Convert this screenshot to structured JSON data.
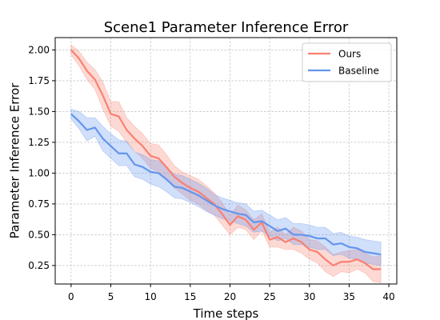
{
  "chart_data": {
    "type": "line",
    "title": "Scene1 Parameter Inference Error",
    "xlabel": "Time steps",
    "ylabel": "Parameter Inference Error",
    "xlim": [
      -2,
      41
    ],
    "ylim": [
      0.1,
      2.1
    ],
    "xticks": [
      0,
      5,
      10,
      15,
      20,
      25,
      30,
      35,
      40
    ],
    "yticks": [
      0.25,
      0.5,
      0.75,
      1.0,
      1.25,
      1.5,
      1.75,
      2.0
    ],
    "xtick_labels": [
      "0",
      "5",
      "10",
      "15",
      "20",
      "25",
      "30",
      "35",
      "40"
    ],
    "ytick_labels": [
      "0.25",
      "0.50",
      "0.75",
      "1.00",
      "1.25",
      "1.50",
      "1.75",
      "2.00"
    ],
    "grid": true,
    "legend_position": "top-right",
    "x": [
      0,
      1,
      2,
      3,
      4,
      5,
      6,
      7,
      8,
      9,
      10,
      11,
      12,
      13,
      14,
      15,
      16,
      17,
      18,
      19,
      20,
      21,
      22,
      23,
      24,
      25,
      26,
      27,
      28,
      29,
      30,
      31,
      32,
      33,
      34,
      35,
      36,
      37,
      38,
      39
    ],
    "series": [
      {
        "name": "Ours",
        "color": "#fa8072",
        "values": [
          2.0,
          1.93,
          1.83,
          1.76,
          1.63,
          1.48,
          1.46,
          1.35,
          1.28,
          1.22,
          1.14,
          1.12,
          1.05,
          0.97,
          0.92,
          0.88,
          0.85,
          0.8,
          0.75,
          0.67,
          0.58,
          0.65,
          0.62,
          0.54,
          0.6,
          0.46,
          0.48,
          0.44,
          0.47,
          0.44,
          0.38,
          0.36,
          0.3,
          0.25,
          0.28,
          0.28,
          0.3,
          0.27,
          0.22,
          0.22
        ],
        "lower": [
          1.96,
          1.87,
          1.76,
          1.68,
          1.52,
          1.38,
          1.34,
          1.25,
          1.18,
          1.12,
          1.04,
          1.01,
          0.95,
          0.88,
          0.83,
          0.78,
          0.75,
          0.7,
          0.66,
          0.58,
          0.5,
          0.56,
          0.54,
          0.46,
          0.53,
          0.4,
          0.4,
          0.38,
          0.38,
          0.35,
          0.3,
          0.27,
          0.2,
          0.16,
          0.2,
          0.19,
          0.22,
          0.19,
          0.12,
          0.11
        ],
        "upper": [
          2.04,
          1.99,
          1.9,
          1.84,
          1.74,
          1.58,
          1.58,
          1.45,
          1.38,
          1.32,
          1.24,
          1.23,
          1.15,
          1.06,
          1.01,
          0.98,
          0.95,
          0.9,
          0.84,
          0.76,
          0.66,
          0.74,
          0.7,
          0.62,
          0.67,
          0.52,
          0.56,
          0.5,
          0.56,
          0.53,
          0.46,
          0.45,
          0.4,
          0.34,
          0.36,
          0.37,
          0.38,
          0.35,
          0.32,
          0.33
        ]
      },
      {
        "name": "Baseline",
        "color": "#6495ed",
        "values": [
          1.48,
          1.42,
          1.35,
          1.37,
          1.28,
          1.22,
          1.16,
          1.16,
          1.07,
          1.05,
          1.01,
          1.0,
          0.95,
          0.89,
          0.88,
          0.85,
          0.82,
          0.78,
          0.74,
          0.71,
          0.69,
          0.67,
          0.66,
          0.6,
          0.61,
          0.57,
          0.53,
          0.55,
          0.5,
          0.5,
          0.49,
          0.47,
          0.47,
          0.42,
          0.43,
          0.4,
          0.39,
          0.36,
          0.35,
          0.34
        ],
        "lower": [
          1.44,
          1.36,
          1.26,
          1.3,
          1.18,
          1.12,
          1.06,
          1.06,
          0.97,
          0.95,
          0.91,
          0.89,
          0.85,
          0.8,
          0.79,
          0.76,
          0.73,
          0.69,
          0.66,
          0.63,
          0.61,
          0.59,
          0.57,
          0.52,
          0.53,
          0.49,
          0.45,
          0.47,
          0.42,
          0.42,
          0.4,
          0.38,
          0.38,
          0.33,
          0.34,
          0.31,
          0.3,
          0.27,
          0.26,
          0.25
        ],
        "upper": [
          1.52,
          1.5,
          1.45,
          1.45,
          1.38,
          1.32,
          1.27,
          1.26,
          1.17,
          1.15,
          1.11,
          1.1,
          1.05,
          0.99,
          0.98,
          0.95,
          0.92,
          0.88,
          0.83,
          0.8,
          0.78,
          0.76,
          0.75,
          0.69,
          0.7,
          0.66,
          0.62,
          0.64,
          0.59,
          0.59,
          0.58,
          0.56,
          0.56,
          0.51,
          0.52,
          0.49,
          0.48,
          0.46,
          0.45,
          0.44
        ]
      }
    ]
  }
}
